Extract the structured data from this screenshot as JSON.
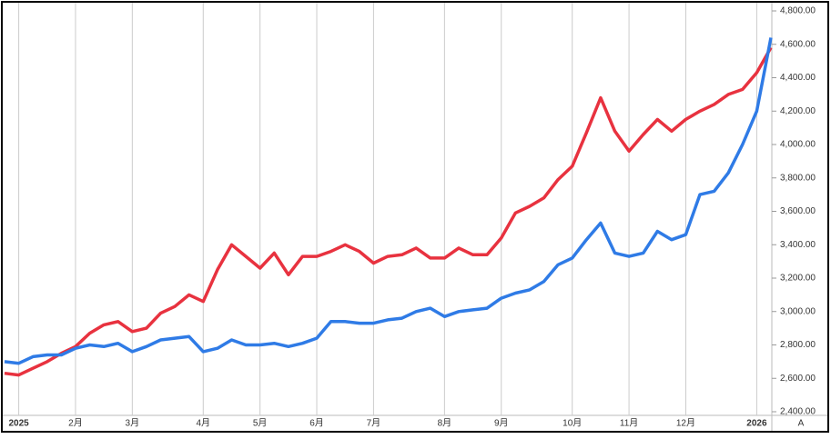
{
  "chart_data": {
    "type": "line",
    "categories": [
      null,
      "2025",
      null,
      null,
      null,
      "2月",
      null,
      null,
      null,
      "3月",
      null,
      null,
      null,
      null,
      "4月",
      null,
      null,
      null,
      "5月",
      null,
      null,
      null,
      "6月",
      null,
      null,
      null,
      "7月",
      null,
      null,
      null,
      null,
      "8月",
      null,
      null,
      null,
      "9月",
      null,
      null,
      null,
      null,
      "10月",
      null,
      null,
      null,
      "11月",
      null,
      null,
      null,
      "12月",
      null,
      null,
      null,
      null,
      "2026",
      null
    ],
    "series": [
      {
        "name": "Red",
        "color": "#e8323f",
        "values": [
          2630,
          2620,
          2660,
          2700,
          2750,
          2790,
          2870,
          2920,
          2940,
          2880,
          2900,
          2990,
          3030,
          3100,
          3060,
          3250,
          3400,
          3330,
          3260,
          3350,
          3220,
          3330,
          3330,
          3360,
          3400,
          3360,
          3290,
          3330,
          3340,
          3380,
          3320,
          3320,
          3380,
          3340,
          3340,
          3440,
          3590,
          3630,
          3680,
          3790,
          3870,
          4070,
          4280,
          4080,
          3960,
          4060,
          4150,
          4080,
          4150,
          4200,
          4240,
          4300,
          4330,
          4430,
          4580
        ]
      },
      {
        "name": "Blue",
        "color": "#2f7be6",
        "values": [
          2700,
          2690,
          2730,
          2740,
          2740,
          2780,
          2800,
          2790,
          2810,
          2760,
          2790,
          2830,
          2840,
          2850,
          2760,
          2780,
          2830,
          2800,
          2800,
          2810,
          2790,
          2810,
          2840,
          2940,
          2940,
          2930,
          2930,
          2950,
          2960,
          3000,
          3020,
          2970,
          3000,
          3010,
          3020,
          3080,
          3110,
          3130,
          3180,
          3280,
          3320,
          3430,
          3530,
          3350,
          3330,
          3350,
          3480,
          3430,
          3460,
          3700,
          3720,
          3830,
          4000,
          4200,
          4640
        ]
      }
    ],
    "ylim": [
      2400,
      4800
    ],
    "yticks": [
      {
        "value": 2400,
        "label": "2,400.00"
      },
      {
        "value": 2600,
        "label": "2,600.00"
      },
      {
        "value": 2800,
        "label": "2,800.00"
      },
      {
        "value": 3000,
        "label": "3,000.00"
      },
      {
        "value": 3200,
        "label": "3,200.00"
      },
      {
        "value": 3400,
        "label": "3,400.00"
      },
      {
        "value": 3600,
        "label": "3,600.00"
      },
      {
        "value": 3800,
        "label": "3,800.00"
      },
      {
        "value": 4000,
        "label": "4,000.00"
      },
      {
        "value": 4200,
        "label": "4,200.00"
      },
      {
        "value": 4400,
        "label": "4,400.00"
      },
      {
        "value": 4600,
        "label": "4,600.00"
      },
      {
        "value": 4800,
        "label": "4,800.00"
      }
    ],
    "grid": true,
    "corner_label": "A"
  }
}
